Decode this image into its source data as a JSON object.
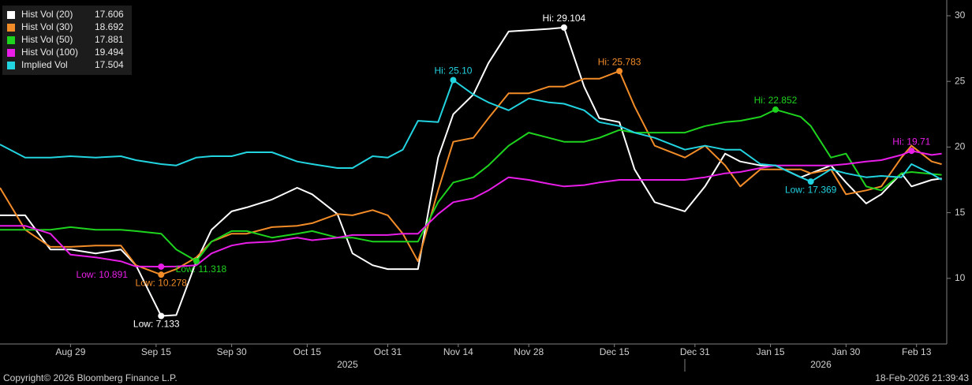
{
  "chart_data": {
    "type": "line",
    "x": [
      "2025-08-15",
      "2025-08-20",
      "2025-08-25",
      "2025-08-29",
      "2025-09-03",
      "2025-09-08",
      "2025-09-11",
      "2025-09-16",
      "2025-09-19",
      "2025-09-23",
      "2025-09-26",
      "2025-09-30",
      "2025-10-03",
      "2025-10-08",
      "2025-10-13",
      "2025-10-16",
      "2025-10-21",
      "2025-10-24",
      "2025-10-28",
      "2025-10-31",
      "2025-11-03",
      "2025-11-06",
      "2025-11-10",
      "2025-11-13",
      "2025-11-17",
      "2025-11-20",
      "2025-11-24",
      "2025-11-28",
      "2025-12-02",
      "2025-12-05",
      "2025-12-09",
      "2025-12-12",
      "2025-12-16",
      "2025-12-19",
      "2025-12-23",
      "2025-12-29",
      "2026-01-02",
      "2026-01-06",
      "2026-01-09",
      "2026-01-13",
      "2026-01-16",
      "2026-01-21",
      "2026-01-23",
      "2026-01-27",
      "2026-01-30",
      "2026-02-03",
      "2026-02-06",
      "2026-02-10",
      "2026-02-12",
      "2026-02-16",
      "2026-02-18"
    ],
    "xlim": [
      "2025-08-15",
      "2026-02-19"
    ],
    "xticks": [
      {
        "value": "2025-08-29",
        "label": "Aug 29"
      },
      {
        "value": "2025-09-15",
        "label": "Sep 15"
      },
      {
        "value": "2025-09-30",
        "label": "Sep 30"
      },
      {
        "value": "2025-10-15",
        "label": "Oct 15"
      },
      {
        "value": "2025-10-31",
        "label": "Oct 31"
      },
      {
        "value": "2025-11-14",
        "label": "Nov 14"
      },
      {
        "value": "2025-11-28",
        "label": "Nov 28"
      },
      {
        "value": "2025-12-15",
        "label": "Dec 15"
      },
      {
        "value": "2025-12-31",
        "label": "Dec 31"
      },
      {
        "value": "2026-01-15",
        "label": "Jan 15"
      },
      {
        "value": "2026-01-30",
        "label": "Jan 30"
      },
      {
        "value": "2026-02-13",
        "label": "Feb 13"
      }
    ],
    "year_labels": [
      {
        "value": "2025-10-23",
        "label": "2025"
      },
      {
        "value": "2026-01-25",
        "label": "2026"
      }
    ],
    "ylim": [
      5,
      31.2
    ],
    "yticks": [
      10,
      15,
      20,
      25,
      30
    ],
    "legend": "upper left",
    "series": [
      {
        "name": "Hist Vol (20)",
        "color": "#ffffff",
        "last": 17.606,
        "values": [
          14.8,
          14.8,
          12.2,
          12.2,
          11.9,
          12.2,
          11.0,
          7.133,
          7.2,
          11.3,
          13.7,
          15.1,
          15.4,
          16.0,
          16.9,
          16.4,
          14.9,
          11.9,
          11.0,
          10.7,
          10.7,
          10.7,
          19.2,
          22.5,
          24.0,
          26.4,
          28.8,
          28.9,
          29.0,
          29.104,
          24.6,
          22.2,
          21.9,
          18.3,
          15.8,
          15.1,
          17.0,
          19.5,
          18.9,
          18.6,
          18.6,
          17.7,
          18.0,
          18.6,
          17.3,
          15.7,
          16.4,
          18.0,
          17.0,
          17.5,
          17.606
        ],
        "high": {
          "x": "2025-12-05",
          "value": 29.104,
          "label": "Hi: 29.104"
        },
        "low": {
          "x": "2025-09-16",
          "value": 7.133,
          "label": "Low: 7.133"
        }
      },
      {
        "name": "Hist Vol (30)",
        "color": "#f28c28",
        "last": 18.692,
        "values": [
          16.9,
          13.7,
          12.4,
          12.4,
          12.5,
          12.5,
          11.0,
          10.278,
          10.7,
          11.6,
          12.8,
          13.4,
          13.4,
          13.9,
          14.0,
          14.2,
          14.9,
          14.8,
          15.2,
          14.8,
          13.4,
          11.3,
          16.7,
          20.4,
          20.7,
          22.2,
          24.1,
          24.1,
          24.6,
          24.6,
          25.2,
          25.2,
          25.783,
          23.1,
          20.1,
          19.2,
          20.1,
          18.6,
          17.0,
          18.3,
          18.3,
          18.3,
          18.0,
          18.3,
          16.4,
          16.7,
          17.0,
          19.2,
          20.1,
          18.9,
          18.692
        ],
        "high": {
          "x": "2025-12-16",
          "value": 25.783,
          "label": "Hi: 25.783"
        },
        "low": {
          "x": "2025-09-16",
          "value": 10.278,
          "label": "Low: 10.278"
        }
      },
      {
        "name": "Hist Vol (50)",
        "color": "#1ed31e",
        "last": 17.881,
        "values": [
          13.7,
          13.7,
          13.7,
          13.9,
          13.7,
          13.7,
          13.6,
          13.4,
          12.2,
          11.318,
          12.8,
          13.6,
          13.6,
          13.1,
          13.4,
          13.6,
          13.1,
          13.1,
          12.8,
          12.8,
          12.8,
          12.8,
          15.8,
          17.3,
          17.7,
          18.6,
          20.1,
          21.1,
          20.7,
          20.4,
          20.4,
          20.7,
          21.3,
          21.1,
          21.1,
          21.1,
          21.6,
          21.9,
          22.0,
          22.3,
          22.852,
          22.3,
          21.6,
          19.2,
          19.5,
          17.0,
          16.7,
          18.0,
          18.1,
          17.95,
          17.881
        ],
        "high": {
          "x": "2026-01-16",
          "value": 22.852,
          "label": "Hi: 22.852"
        },
        "low": {
          "x": "2025-09-23",
          "value": 11.318,
          "label": "Low: 11.318"
        }
      },
      {
        "name": "Hist Vol (100)",
        "color": "#e81ee8",
        "last": 19.494,
        "values": [
          14.0,
          14.0,
          13.4,
          11.8,
          11.6,
          11.3,
          10.9,
          10.891,
          10.9,
          11.0,
          11.9,
          12.5,
          12.7,
          12.8,
          13.1,
          12.9,
          13.1,
          13.3,
          13.3,
          13.3,
          13.4,
          13.4,
          14.9,
          15.8,
          16.1,
          16.7,
          17.7,
          17.5,
          17.2,
          17.0,
          17.1,
          17.3,
          17.5,
          17.5,
          17.5,
          17.5,
          17.7,
          18.0,
          18.1,
          18.4,
          18.6,
          18.6,
          18.6,
          18.6,
          18.7,
          18.9,
          19.0,
          19.4,
          19.71,
          19.4,
          19.494
        ],
        "high": {
          "x": "2026-02-12",
          "value": 19.71,
          "label": "Hi: 19.71"
        },
        "low": {
          "x": "2025-09-16",
          "value": 10.891,
          "label": "Low: 10.891"
        }
      },
      {
        "name": "Implied Vol",
        "color": "#22d3e0",
        "last": 17.504,
        "values": [
          20.2,
          19.2,
          19.2,
          19.3,
          19.2,
          19.3,
          19.0,
          18.7,
          18.6,
          19.2,
          19.3,
          19.3,
          19.6,
          19.6,
          18.9,
          18.7,
          18.4,
          18.4,
          19.3,
          19.2,
          19.8,
          22.0,
          21.9,
          25.1,
          24.0,
          23.4,
          22.8,
          23.7,
          23.4,
          23.3,
          22.8,
          21.9,
          21.6,
          21.1,
          20.7,
          19.8,
          20.1,
          19.8,
          19.8,
          18.7,
          18.6,
          17.7,
          17.369,
          18.3,
          18.0,
          17.7,
          17.8,
          17.7,
          18.7,
          17.95,
          17.504
        ],
        "high": {
          "x": "2025-11-13",
          "value": 25.1,
          "label": "Hi: 25.10"
        },
        "low": {
          "x": "2026-01-23",
          "value": 17.369,
          "label": "Low: 17.369"
        }
      }
    ],
    "copyright": "Copyright© 2026 Bloomberg Finance L.P.",
    "timestamp": "18-Feb-2026 21:39:43"
  }
}
